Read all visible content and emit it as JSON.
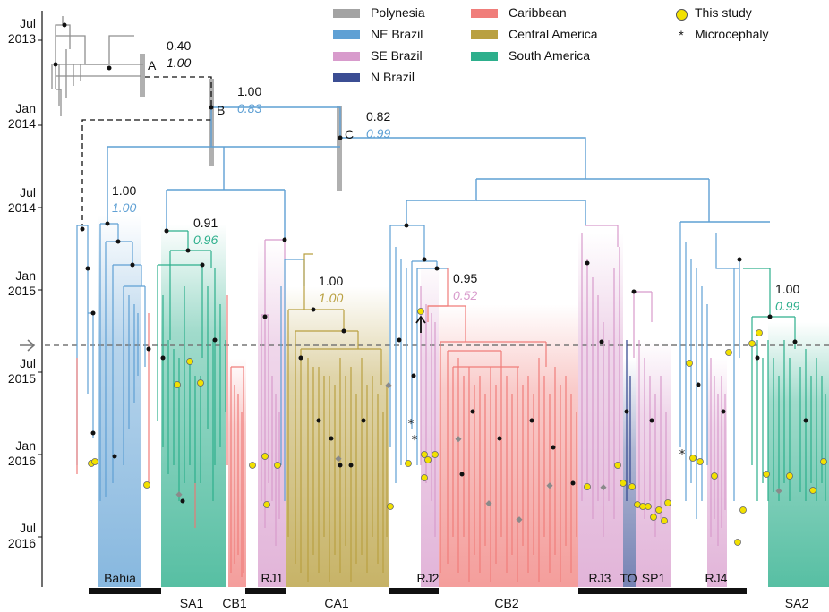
{
  "time_axis": {
    "labels": [
      {
        "line1": "Jul",
        "line2": "2013"
      },
      {
        "line1": "Jan",
        "line2": "2014"
      },
      {
        "line1": "Jul",
        "line2": "2014"
      },
      {
        "line1": "Jan",
        "line2": "2015"
      },
      {
        "line1": "Jul",
        "line2": "2015"
      },
      {
        "line1": "Jan",
        "line2": "2016"
      },
      {
        "line1": "Jul",
        "line2": "2016"
      }
    ]
  },
  "legend": {
    "regions": [
      {
        "label": "Polynesia",
        "color": "#a3a3a3"
      },
      {
        "label": "NE Brazil",
        "color": "#5fa0d4"
      },
      {
        "label": "SE Brazil",
        "color": "#d89bcc"
      },
      {
        "label": "N Brazil",
        "color": "#3b4d93"
      },
      {
        "label": "Caribbean",
        "color": "#f07d7a"
      },
      {
        "label": "Central America",
        "color": "#b9a041"
      },
      {
        "label": "South America",
        "color": "#2daf8c"
      }
    ],
    "symbols": [
      {
        "label": "This study",
        "icon": "yellow-circle"
      },
      {
        "label": "Microcephaly",
        "symbol": "*",
        "icon": "asterisk"
      }
    ]
  },
  "nodes": [
    {
      "name": "A"
    },
    {
      "name": "B"
    },
    {
      "name": "C"
    }
  ],
  "support_values": [
    {
      "posterior": "0.40",
      "bootstrap": "1.00",
      "color": "#111111"
    },
    {
      "posterior": "1.00",
      "bootstrap": "0.83",
      "color": "#5fa0d4"
    },
    {
      "posterior": "0.82",
      "bootstrap": "0.99",
      "color": "#5fa0d4"
    },
    {
      "posterior": "1.00",
      "bootstrap": "1.00",
      "color": "#5fa0d4"
    },
    {
      "posterior": "0.91",
      "bootstrap": "0.96",
      "color": "#2daf8c"
    },
    {
      "posterior": "1.00",
      "bootstrap": "1.00",
      "color": "#b9a041"
    },
    {
      "posterior": "0.95",
      "bootstrap": "0.52",
      "color": "#d89bcc"
    },
    {
      "posterior": "1.00",
      "bootstrap": "0.99",
      "color": "#2daf8c"
    }
  ],
  "clades_top": [
    "Bahia",
    "RJ1",
    "RJ2",
    "RJ3",
    "TO",
    "SP1",
    "RJ4"
  ],
  "clades_bottom": [
    "SA1",
    "CB1",
    "CA1",
    "CB2",
    "SA2"
  ]
}
